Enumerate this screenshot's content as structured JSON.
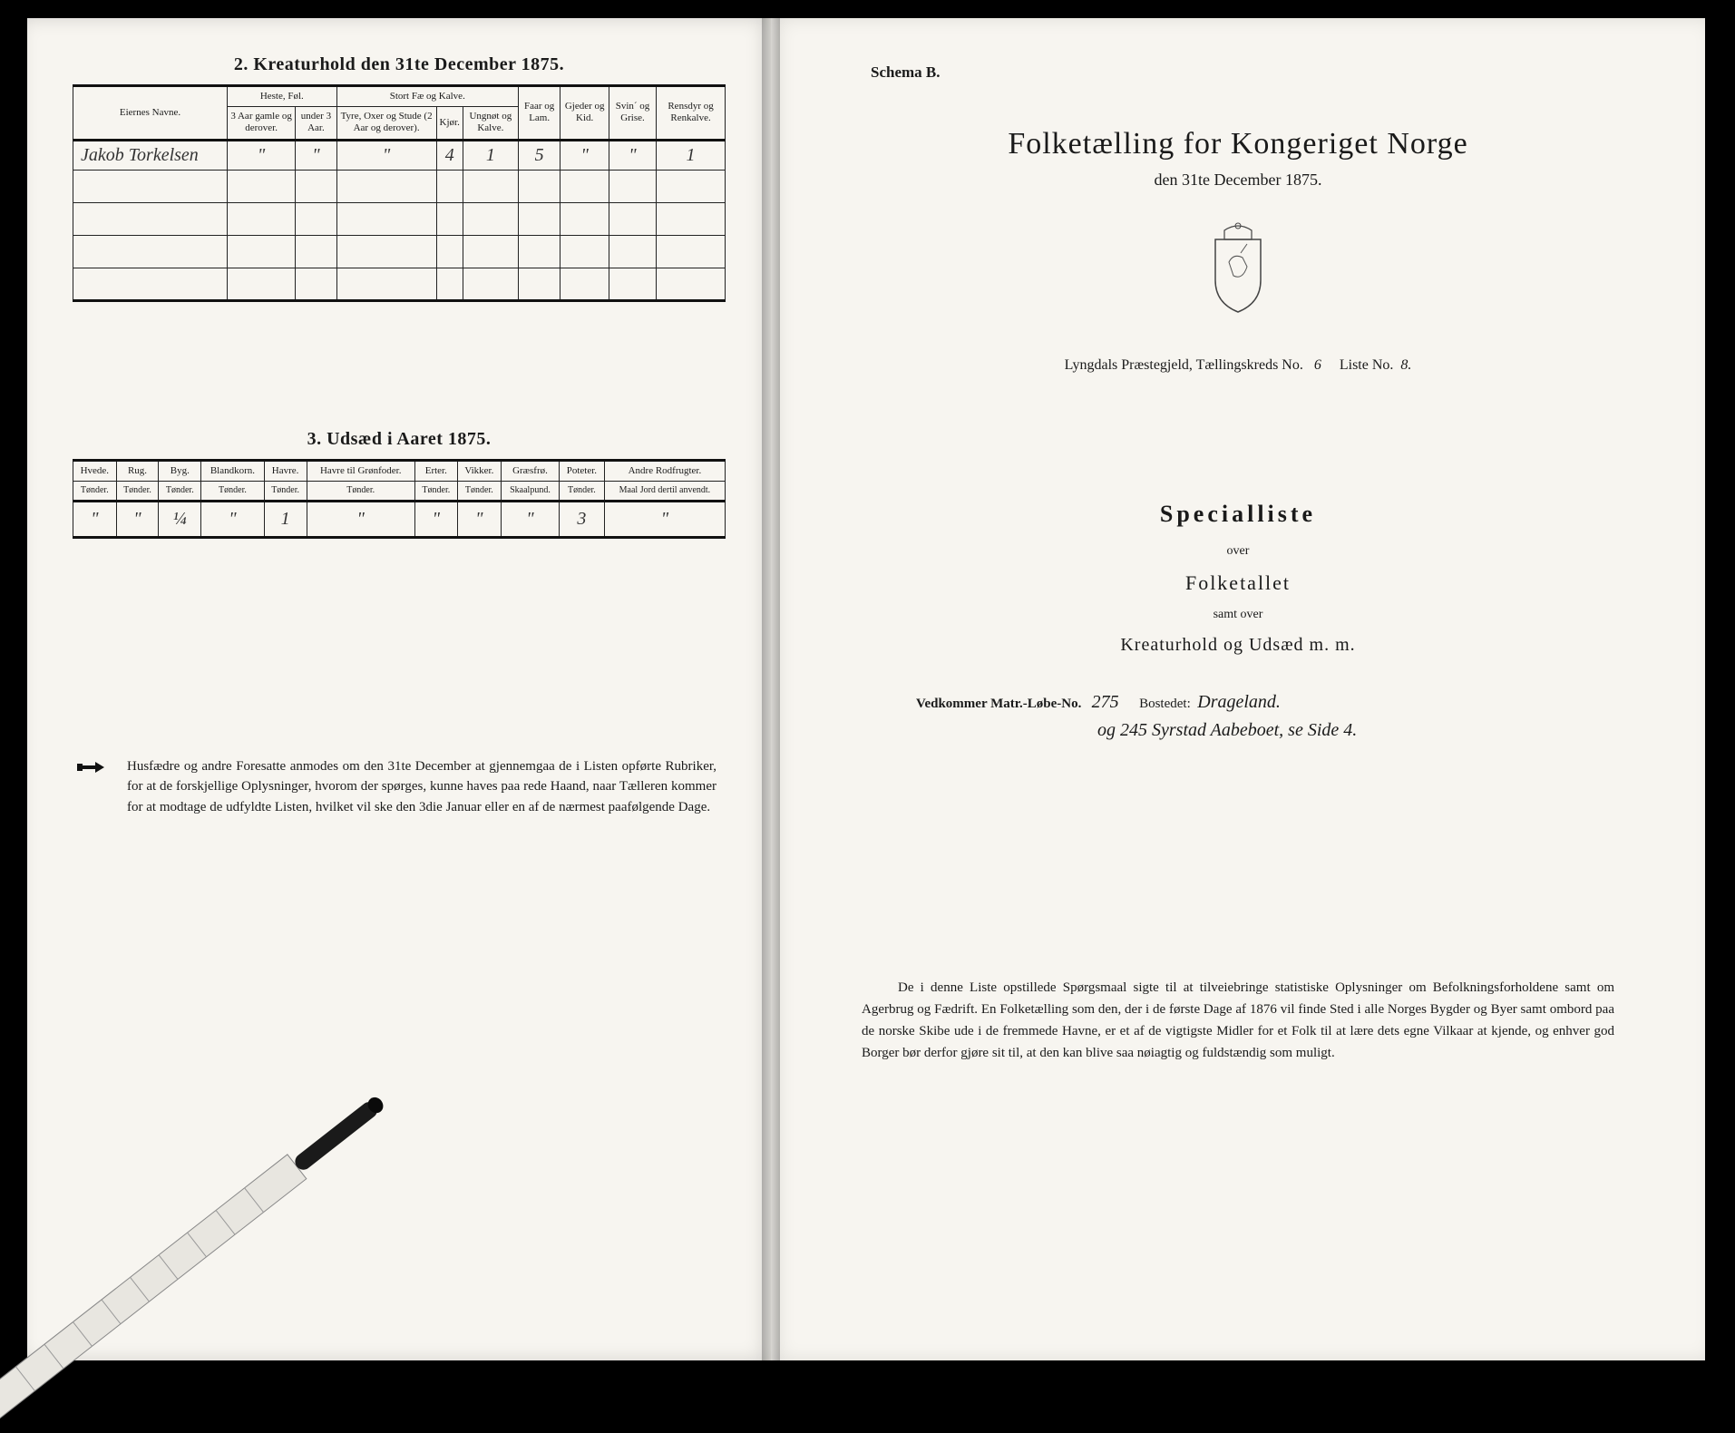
{
  "left": {
    "section2_title": "2. Kreaturhold den 31te December 1875.",
    "table2": {
      "col_owner": "Eiernes Navne.",
      "grp_heste": "Heste, Føl.",
      "grp_stort": "Stort Fæ og Kalve.",
      "col_h1": "3 Aar gamle og derover.",
      "col_h2": "under 3 Aar.",
      "col_s1": "Tyre, Oxer og Stude (2 Aar og derover).",
      "col_s2": "Kjør.",
      "col_s3": "Ungnøt og Kalve.",
      "col_faar": "Faar og Lam.",
      "col_gjeder": "Gjeder og Kid.",
      "col_svin": "Svin´ og Grise.",
      "col_rensdyr": "Rensdyr og Renkalve.",
      "row_owner": "Jakob Torkelsen",
      "r": {
        "h1": "\"",
        "h2": "\"",
        "s1": "\"",
        "s2": "4",
        "s3": "1",
        "faar": "5",
        "gjeder": "\"",
        "svin": "\"",
        "ren": "1"
      }
    },
    "section3_title": "3. Udsæd i Aaret 1875.",
    "table3": {
      "cols": [
        {
          "h": "Hvede.",
          "u": "Tønder."
        },
        {
          "h": "Rug.",
          "u": "Tønder."
        },
        {
          "h": "Byg.",
          "u": "Tønder."
        },
        {
          "h": "Blandkorn.",
          "u": "Tønder."
        },
        {
          "h": "Havre.",
          "u": "Tønder."
        },
        {
          "h": "Havre til Grønfoder.",
          "u": "Tønder."
        },
        {
          "h": "Erter.",
          "u": "Tønder."
        },
        {
          "h": "Vikker.",
          "u": "Tønder."
        },
        {
          "h": "Græsfrø.",
          "u": "Skaalpund."
        },
        {
          "h": "Poteter.",
          "u": "Tønder."
        },
        {
          "h": "Andre Rodfrugter.",
          "u": "Maal Jord dertil anvendt."
        }
      ],
      "vals": [
        "\"",
        "\"",
        "¼",
        "\"",
        "1",
        "\"",
        "\"",
        "\"",
        "\"",
        "3",
        "\""
      ]
    },
    "footnote": "Husfædre og andre Foresatte anmodes om den 31te December at gjennemgaa de i Listen opførte Rubriker, for at de forskjellige Oplysninger, hvorom der spørges, kunne haves paa rede Haand, naar Tælleren kommer for at modtage de udfyldte Listen, hvilket vil ske den 3die Januar eller en af de nærmest paafølgende Dage."
  },
  "right": {
    "schema": "Schema B.",
    "main_title": "Folketælling for Kongeriget Norge",
    "sub_date": "den 31te December 1875.",
    "district_prefix": "Lyngdals Præstegjeld, Tællingskreds No.",
    "district_no": "6",
    "liste_label": "Liste No.",
    "liste_no": "8.",
    "spec": "Specialliste",
    "over": "over",
    "folketallet": "Folketallet",
    "samt": "samt over",
    "kreatur": "Kreaturhold og Udsæd m. m.",
    "vedkommer_label": "Vedkommer Matr.-Løbe-No.",
    "vedkommer_no": "275",
    "bostedet_label": "Bostedet:",
    "bostedet": "Drageland.",
    "line2": "og 245 Syrstad Aabeboet, se Side 4.",
    "bottom": "De i denne Liste opstillede Spørgsmaal sigte til at tilveiebringe statistiske Oplysninger om Befolkningsforholdene samt om Agerbrug og Fædrift. En Folketælling som den, der i de første Dage af 1876 vil finde Sted i alle Norges Bygder og Byer samt ombord paa de norske Skibe ude i de fremmede Havne, er et af de vigtigste Midler for et Folk til at lære dets egne Vilkaar at kjende, og enhver god Borger bør derfor gjøre sit til, at den kan blive saa nøiagtig og fuldstændig som muligt."
  }
}
